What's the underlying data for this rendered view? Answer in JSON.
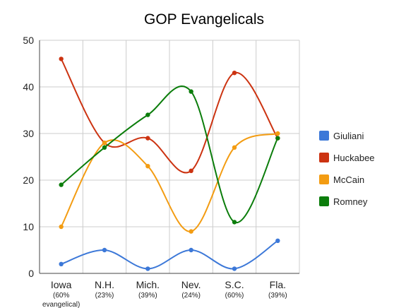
{
  "chart_data": {
    "type": "line",
    "title": "GOP Evangelicals",
    "xlabel": "",
    "ylabel": "",
    "categories": [
      "Iowa",
      "N.H.",
      "Mich.",
      "Nev.",
      "S.C.",
      "Fla."
    ],
    "category_notes": [
      "(60% evangelical)",
      "(23%)",
      "(39%)",
      "(24%)",
      "(60%)",
      "(39%)"
    ],
    "ylim": [
      0,
      50
    ],
    "yticks": [
      0,
      10,
      20,
      30,
      40,
      50
    ],
    "grid": true,
    "smooth": true,
    "legend_position": "right",
    "series": [
      {
        "name": "Giuliani",
        "color": "#3c78d8",
        "values": [
          2,
          5,
          1,
          5,
          1,
          7
        ]
      },
      {
        "name": "Huckabee",
        "color": "#cc3311",
        "values": [
          46,
          28,
          29,
          22,
          43,
          29
        ]
      },
      {
        "name": "McCain",
        "color": "#f39c12",
        "values": [
          10,
          28,
          23,
          9,
          27,
          30
        ]
      },
      {
        "name": "Romney",
        "color": "#0b7d0b",
        "values": [
          19,
          27,
          34,
          39,
          11,
          29
        ]
      }
    ]
  }
}
